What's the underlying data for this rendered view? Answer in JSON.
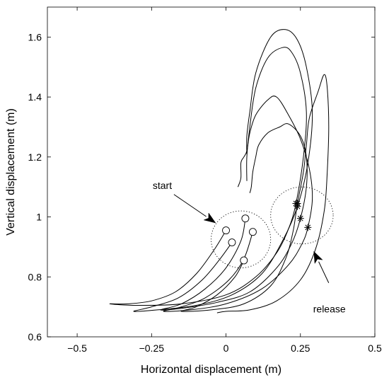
{
  "chart_data": {
    "type": "line",
    "xlabel": "Horizontal displacement (m)",
    "ylabel": "Vertical displacement (m)",
    "xlim": [
      -0.6,
      0.5
    ],
    "ylim": [
      0.6,
      1.7
    ],
    "xticks": [
      -0.5,
      -0.25,
      0,
      0.25,
      0.5
    ],
    "xtick_labels": [
      "−0.5",
      "−0.25",
      "0",
      "0.25",
      "0.5"
    ],
    "yticks": [
      0.6,
      0.8,
      1.0,
      1.2,
      1.4,
      1.6
    ],
    "ytick_labels": [
      "0.6",
      "0.8",
      "1",
      "1.2",
      "1.4",
      "1.6"
    ],
    "grid": false,
    "series": [
      {
        "start": [
          0.0,
          0.955
        ],
        "release": [
          0.235,
          1.045
        ],
        "points": [
          [
            0.0,
            0.955
          ],
          [
            -0.04,
            0.89
          ],
          [
            -0.1,
            0.81
          ],
          [
            -0.17,
            0.75
          ],
          [
            -0.25,
            0.72
          ],
          [
            -0.33,
            0.71
          ],
          [
            -0.39,
            0.71
          ],
          [
            -0.3,
            0.705
          ],
          [
            -0.15,
            0.71
          ],
          [
            0.0,
            0.74
          ],
          [
            0.1,
            0.8
          ],
          [
            0.17,
            0.88
          ],
          [
            0.21,
            0.96
          ],
          [
            0.235,
            1.045
          ],
          [
            0.26,
            1.2
          ],
          [
            0.27,
            1.35
          ],
          [
            0.25,
            1.48
          ],
          [
            0.22,
            1.55
          ],
          [
            0.19,
            1.565
          ],
          [
            0.14,
            1.53
          ],
          [
            0.1,
            1.43
          ],
          [
            0.08,
            1.3
          ],
          [
            0.07,
            1.2
          ],
          [
            0.07,
            1.12
          ]
        ]
      },
      {
        "start": [
          0.02,
          0.915
        ],
        "release": [
          0.24,
          1.035
        ],
        "points": [
          [
            0.02,
            0.915
          ],
          [
            -0.02,
            0.86
          ],
          [
            -0.08,
            0.79
          ],
          [
            -0.16,
            0.73
          ],
          [
            -0.25,
            0.7
          ],
          [
            -0.31,
            0.685
          ],
          [
            -0.23,
            0.69
          ],
          [
            -0.1,
            0.705
          ],
          [
            0.02,
            0.74
          ],
          [
            0.12,
            0.81
          ],
          [
            0.19,
            0.92
          ],
          [
            0.24,
            1.035
          ],
          [
            0.275,
            1.18
          ],
          [
            0.29,
            1.35
          ],
          [
            0.27,
            1.5
          ],
          [
            0.24,
            1.59
          ],
          [
            0.2,
            1.625
          ],
          [
            0.15,
            1.6
          ],
          [
            0.1,
            1.48
          ],
          [
            0.08,
            1.35
          ],
          [
            0.07,
            1.27
          ],
          [
            0.07,
            1.21
          ]
        ]
      },
      {
        "start": [
          0.065,
          0.995
        ],
        "release": [
          0.25,
          0.995
        ],
        "points": [
          [
            0.065,
            0.995
          ],
          [
            0.05,
            0.92
          ],
          [
            0.0,
            0.83
          ],
          [
            -0.07,
            0.76
          ],
          [
            -0.15,
            0.71
          ],
          [
            -0.22,
            0.69
          ],
          [
            -0.15,
            0.695
          ],
          [
            -0.03,
            0.715
          ],
          [
            0.08,
            0.75
          ],
          [
            0.17,
            0.83
          ],
          [
            0.22,
            0.91
          ],
          [
            0.25,
            0.995
          ],
          [
            0.27,
            1.1
          ],
          [
            0.27,
            1.2
          ],
          [
            0.25,
            1.27
          ],
          [
            0.21,
            1.31
          ],
          [
            0.18,
            1.3
          ],
          [
            0.14,
            1.28
          ],
          [
            0.11,
            1.24
          ],
          [
            0.1,
            1.2
          ],
          [
            0.09,
            1.15
          ],
          [
            0.085,
            1.1
          ],
          [
            0.08,
            1.08
          ]
        ]
      },
      {
        "start": [
          0.09,
          0.95
        ],
        "release": [
          0.275,
          0.965
        ],
        "points": [
          [
            0.09,
            0.95
          ],
          [
            0.06,
            0.86
          ],
          [
            0.01,
            0.79
          ],
          [
            -0.07,
            0.73
          ],
          [
            -0.15,
            0.7
          ],
          [
            -0.21,
            0.685
          ],
          [
            -0.12,
            0.69
          ],
          [
            0.0,
            0.71
          ],
          [
            0.12,
            0.76
          ],
          [
            0.21,
            0.84
          ],
          [
            0.255,
            0.91
          ],
          [
            0.275,
            0.965
          ],
          [
            0.29,
            1.06
          ],
          [
            0.28,
            1.16
          ],
          [
            0.25,
            1.26
          ],
          [
            0.21,
            1.34
          ],
          [
            0.17,
            1.4
          ],
          [
            0.14,
            1.39
          ],
          [
            0.1,
            1.34
          ],
          [
            0.08,
            1.28
          ],
          [
            0.07,
            1.22
          ],
          [
            0.06,
            1.2
          ],
          [
            0.05,
            1.18
          ],
          [
            0.05,
            1.13
          ],
          [
            0.04,
            1.1
          ]
        ]
      },
      {
        "start": [
          0.06,
          0.855
        ],
        "release": [
          0.24,
          1.045
        ],
        "points": [
          [
            0.06,
            0.855
          ],
          [
            0.03,
            0.8
          ],
          [
            -0.03,
            0.74
          ],
          [
            -0.1,
            0.7
          ],
          [
            -0.15,
            0.685
          ],
          [
            -0.05,
            0.69
          ],
          [
            0.06,
            0.71
          ],
          [
            0.15,
            0.77
          ],
          [
            0.2,
            0.86
          ],
          [
            0.225,
            0.95
          ],
          [
            0.24,
            1.045
          ],
          [
            0.26,
            1.15
          ],
          [
            0.27,
            1.24
          ],
          [
            0.28,
            1.33
          ],
          [
            0.31,
            1.42
          ],
          [
            0.33,
            1.475
          ],
          [
            0.34,
            1.43
          ],
          [
            0.345,
            1.3
          ],
          [
            0.34,
            1.15
          ],
          [
            0.33,
            1.02
          ],
          [
            0.3,
            0.89
          ],
          [
            0.25,
            0.79
          ],
          [
            0.17,
            0.72
          ],
          [
            0.08,
            0.69
          ],
          [
            0.0,
            0.685
          ],
          [
            -0.03,
            0.68
          ]
        ]
      }
    ],
    "regions": [
      {
        "center": [
          0.05,
          0.925
        ],
        "radii": [
          0.1,
          0.095
        ]
      },
      {
        "center": [
          0.255,
          1.005
        ],
        "radii": [
          0.105,
          0.095
        ]
      }
    ],
    "annotations": [
      {
        "text": "start",
        "arrow_from": [
          -0.175,
          1.075
        ],
        "arrow_to": [
          -0.035,
          0.98
        ]
      },
      {
        "text": "release",
        "arrow_from": [
          0.345,
          0.78
        ],
        "arrow_to": [
          0.295,
          0.885
        ]
      }
    ]
  }
}
